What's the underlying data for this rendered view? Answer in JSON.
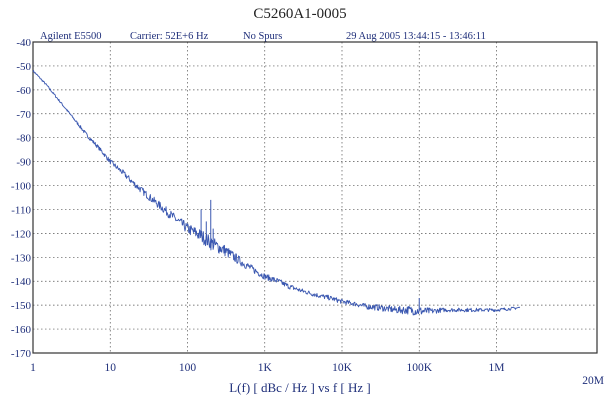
{
  "chart_data": {
    "type": "line",
    "title": "C5260A1-0005",
    "header": {
      "instrument": "Agilent E5500",
      "carrier": "Carrier: 52E+6 Hz",
      "spurs": "No Spurs",
      "timestamp": "29 Aug 2005  13:44:15 - 13:46:11"
    },
    "xlabel": "L(f)  [ dBc / Hz ]  vs  f  [ Hz ]",
    "x_scale": "log",
    "xlim": [
      1,
      20000000
    ],
    "ylim": [
      -170,
      -40
    ],
    "grid": true,
    "x_ticks": [
      {
        "value": 1,
        "label": "1"
      },
      {
        "value": 10,
        "label": "10"
      },
      {
        "value": 100,
        "label": "100"
      },
      {
        "value": 1000,
        "label": "1K"
      },
      {
        "value": 10000,
        "label": "10K"
      },
      {
        "value": 100000,
        "label": "100K"
      },
      {
        "value": 1000000,
        "label": "1M"
      },
      {
        "value": 20000000,
        "label": "20M"
      }
    ],
    "y_ticks": [
      {
        "value": -40,
        "label": "-40"
      },
      {
        "value": -50,
        "label": "-50"
      },
      {
        "value": -60,
        "label": "-60"
      },
      {
        "value": -70,
        "label": "-70"
      },
      {
        "value": -80,
        "label": "-80"
      },
      {
        "value": -90,
        "label": "-90"
      },
      {
        "value": -100,
        "label": "-100"
      },
      {
        "value": -110,
        "label": "-110"
      },
      {
        "value": -120,
        "label": "-120"
      },
      {
        "value": -130,
        "label": "-130"
      },
      {
        "value": -140,
        "label": "-140"
      },
      {
        "value": -150,
        "label": "-150"
      },
      {
        "value": -160,
        "label": "-160"
      },
      {
        "value": -170,
        "label": "-170"
      }
    ],
    "series": [
      {
        "x": [
          1,
          1.5,
          2,
          3,
          5,
          7,
          10,
          15,
          20,
          30,
          50,
          70,
          100,
          150,
          200,
          300,
          500,
          700,
          1000,
          1500,
          2000,
          3000,
          5000,
          7000,
          10000,
          15000,
          20000,
          30000,
          50000,
          70000,
          100000,
          150000,
          200000,
          300000,
          500000,
          700000,
          1000000,
          1500000,
          2000000
        ],
        "y": [
          -52,
          -58,
          -63,
          -70,
          -79,
          -84,
          -90,
          -95,
          -99,
          -104,
          -110,
          -114,
          -118,
          -121,
          -124,
          -127,
          -132,
          -135,
          -138,
          -140,
          -142,
          -144,
          -146,
          -147,
          -148.5,
          -149.5,
          -150.5,
          -151,
          -152,
          -152,
          -152.5,
          -152.5,
          -152,
          -152,
          -152,
          -152,
          -152,
          -151.5,
          -151
        ],
        "noise": [
          0.4,
          0.4,
          0.5,
          0.5,
          0.8,
          0.8,
          1.0,
          1.2,
          1.3,
          1.5,
          1.8,
          2.0,
          2.3,
          2.8,
          3.0,
          2.5,
          1.8,
          1.5,
          1.3,
          1.2,
          1.1,
          1.0,
          1.0,
          1.0,
          1.0,
          1.0,
          1.2,
          1.3,
          1.5,
          1.8,
          2.0,
          1.2,
          0.9,
          0.8,
          0.8,
          0.7,
          0.7,
          0.6,
          0.6
        ],
        "spurs": [
          {
            "x": 150,
            "y": -110
          },
          {
            "x": 175,
            "y": -115
          },
          {
            "x": 200,
            "y": -106
          },
          {
            "x": 215,
            "y": -118
          },
          {
            "x": 100000,
            "y": -147
          }
        ]
      }
    ],
    "colors": {
      "trace": "#3a57b0",
      "frame": "#333333",
      "grid": "#555555",
      "text": "#1f2f7a"
    }
  }
}
